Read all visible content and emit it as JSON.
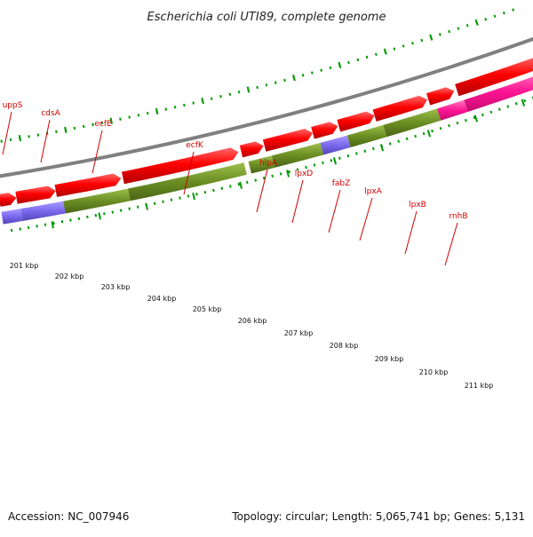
{
  "title": "Escherichia coli UTI89, complete genome",
  "footer": {
    "accession": "Accession: NC_007946",
    "summary": "Topology: circular; Length: 5,065,741 bp; Genes: 5,131"
  },
  "genes": [
    "uppS",
    "cdsA",
    "ecfE",
    "ecfK",
    "hlpA",
    "lpxD",
    "fabZ",
    "lpxA",
    "lpxB",
    "rnhB"
  ],
  "kbp_labels": [
    "201 kbp",
    "202 kbp",
    "203 kbp",
    "204 kbp",
    "205 kbp",
    "206 kbp",
    "207 kbp",
    "208 kbp",
    "209 kbp",
    "210 kbp",
    "211 kbp"
  ],
  "colors": {
    "cds_arrow": "#ff0000",
    "tick": "#009900",
    "gene_label": "#d40000",
    "backbone": "#808080",
    "category_purple": "#7b68ee",
    "category_olive": "#6b8e23",
    "category_magenta": "#ff1493"
  }
}
